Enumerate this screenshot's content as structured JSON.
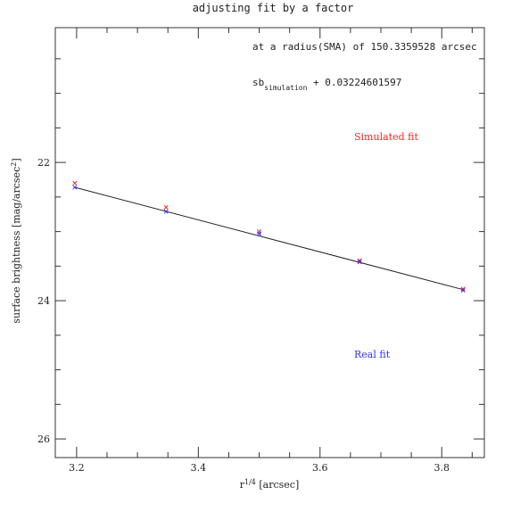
{
  "chart_data": {
    "type": "scatter",
    "title": "adjusting fit by a factor",
    "xlabel_base": "r",
    "xlabel_sup": "1/4",
    "xlabel_rest": " [arcsec]",
    "ylabel_base": "surface brightness [mag/arcsec",
    "ylabel_sup": "2",
    "ylabel_end": "]",
    "xlim": [
      3.165,
      3.87
    ],
    "ylim": [
      26.27,
      20.05
    ],
    "y_inverted": true,
    "grid": false,
    "x_major_ticks": [
      3.2,
      3.4,
      3.6,
      3.8
    ],
    "x_tick_labels": [
      "3.2",
      "3.4",
      "3.6",
      "3.8"
    ],
    "y_major_ticks": [
      22,
      24,
      26
    ],
    "y_tick_labels": [
      "22",
      "24",
      "26"
    ],
    "annotations": {
      "radius": "at a radius(SMA) of 150.3359528 arcsec",
      "sb_base": "sb",
      "sb_sub": "simulation",
      "sb_rest": " + 0.03224601597"
    },
    "series": [
      {
        "name": "Simulated fit",
        "color": "#ff2020",
        "marker": "x",
        "x": [
          3.197,
          3.347,
          3.5,
          3.665,
          3.835
        ],
        "y": [
          22.3,
          22.65,
          23.0,
          23.42,
          23.83
        ]
      },
      {
        "name": "Real fit",
        "color": "#3030ff",
        "marker": "x",
        "x": [
          3.197,
          3.347,
          3.5,
          3.665,
          3.835
        ],
        "y": [
          22.36,
          22.71,
          23.03,
          23.44,
          23.85
        ]
      }
    ],
    "fit_line": {
      "color": "#222222",
      "x": [
        3.197,
        3.835
      ],
      "y": [
        22.36,
        23.84
      ]
    }
  }
}
